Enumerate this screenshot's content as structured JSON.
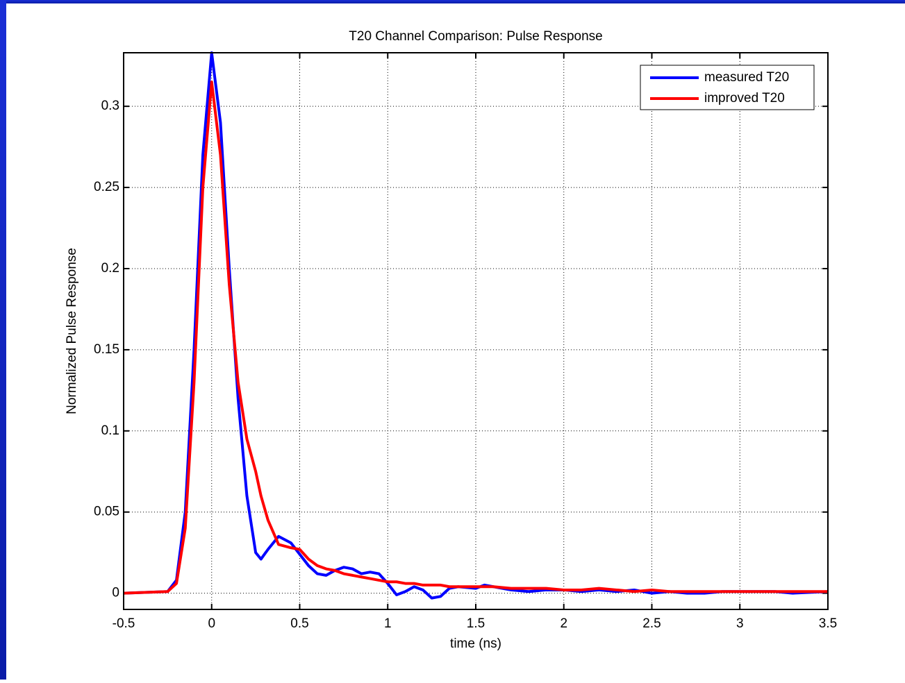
{
  "chart_data": {
    "type": "line",
    "title": "T20 Channel Comparison: Pulse Response",
    "x_label": "time (ns)",
    "y_label": "Normalized Pulse Response",
    "x": [
      -0.5,
      -0.25,
      -0.2,
      -0.15,
      -0.1,
      -0.05,
      0,
      0.05,
      0.1,
      0.15,
      0.2,
      0.25,
      0.28,
      0.32,
      0.38,
      0.45,
      0.5,
      0.55,
      0.6,
      0.65,
      0.7,
      0.75,
      0.8,
      0.85,
      0.9,
      0.95,
      1.0,
      1.05,
      1.1,
      1.15,
      1.2,
      1.25,
      1.3,
      1.35,
      1.4,
      1.5,
      1.55,
      1.6,
      1.7,
      1.8,
      1.9,
      2.0,
      2.1,
      2.2,
      2.3,
      2.4,
      2.5,
      2.6,
      2.7,
      2.8,
      2.9,
      3.0,
      3.1,
      3.2,
      3.3,
      3.5
    ],
    "series": [
      {
        "name": "measured T20",
        "color": "#0000ff",
        "values": [
          0,
          0.001,
          0.008,
          0.05,
          0.15,
          0.27,
          0.333,
          0.29,
          0.2,
          0.12,
          0.06,
          0.025,
          0.021,
          0.027,
          0.035,
          0.031,
          0.024,
          0.017,
          0.012,
          0.011,
          0.014,
          0.016,
          0.015,
          0.012,
          0.013,
          0.012,
          0.006,
          -0.001,
          0.001,
          0.004,
          0.002,
          -0.003,
          -0.002,
          0.003,
          0.004,
          0.003,
          0.005,
          0.004,
          0.002,
          0.001,
          0.002,
          0.002,
          0.001,
          0.002,
          0.001,
          0.002,
          0.0,
          0.001,
          0.0,
          0.0,
          0.001,
          0.001,
          0.001,
          0.001,
          0.0,
          0.001
        ]
      },
      {
        "name": "improved T20",
        "color": "#ff0000",
        "values": [
          0,
          0.001,
          0.006,
          0.04,
          0.13,
          0.25,
          0.315,
          0.27,
          0.19,
          0.13,
          0.095,
          0.075,
          0.06,
          0.045,
          0.03,
          0.028,
          0.027,
          0.021,
          0.017,
          0.015,
          0.014,
          0.012,
          0.011,
          0.01,
          0.009,
          0.008,
          0.007,
          0.007,
          0.006,
          0.006,
          0.005,
          0.005,
          0.005,
          0.004,
          0.004,
          0.004,
          0.004,
          0.004,
          0.003,
          0.003,
          0.003,
          0.002,
          0.002,
          0.003,
          0.002,
          0.001,
          0.002,
          0.001,
          0.001,
          0.001,
          0.001,
          0.001,
          0.001,
          0.001,
          0.001,
          0.001
        ]
      }
    ],
    "xlim": [
      -0.5,
      3.5
    ],
    "xticks": [
      -0.5,
      0,
      0.5,
      1,
      1.5,
      2,
      2.5,
      3,
      3.5
    ],
    "ylim": [
      -0.01,
      0.333
    ],
    "yticks": [
      0,
      0.05,
      0.1,
      0.15,
      0.2,
      0.25,
      0.3
    ],
    "grid": true,
    "legend": "top-right"
  }
}
